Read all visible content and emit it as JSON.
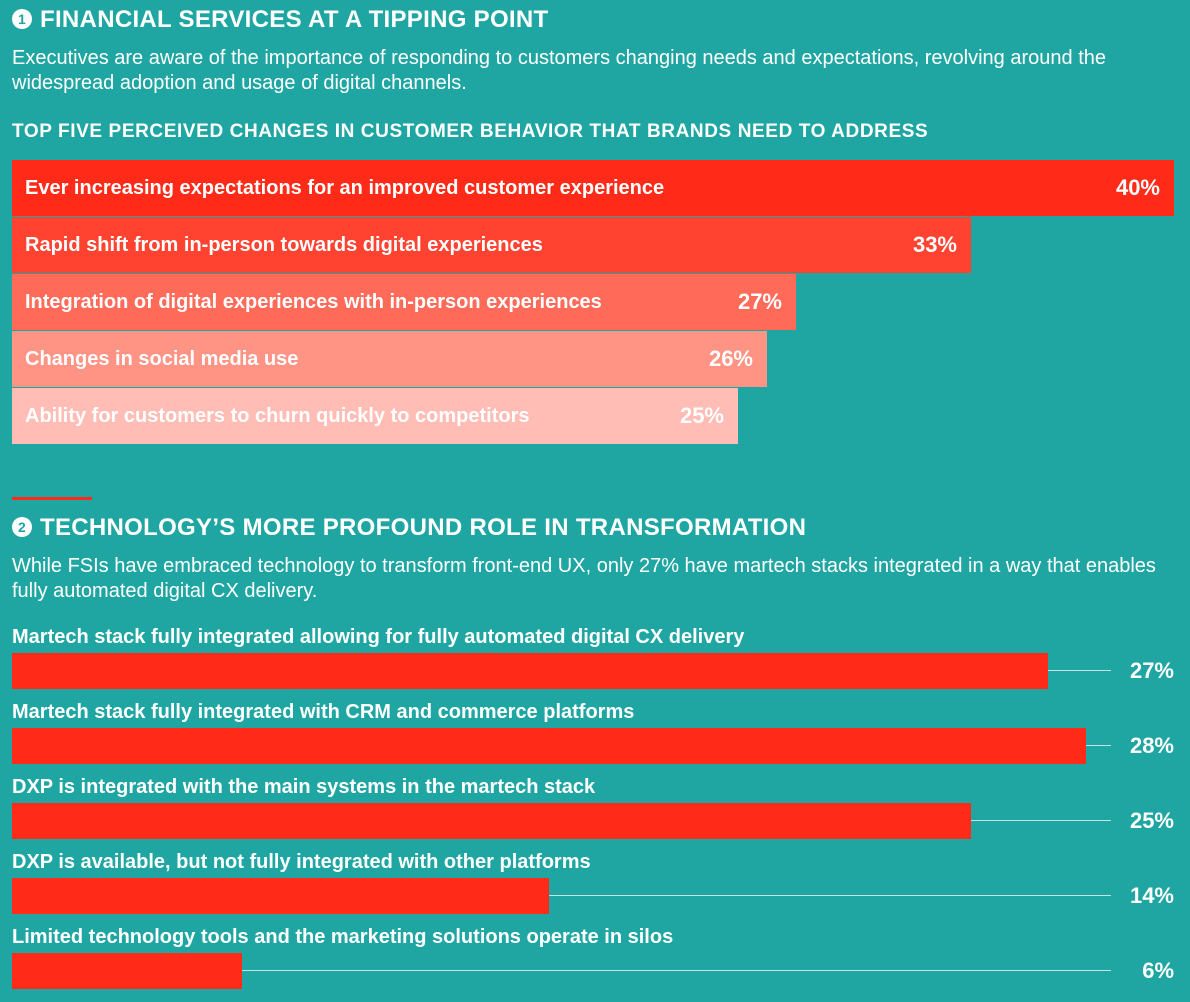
{
  "section1": {
    "number": "1",
    "title": "FINANCIAL SERVICES AT A TIPPING POINT",
    "intro": "Executives are aware of the importance of responding to customers changing needs and expectations, revolving around the widespread adoption and usage of digital channels.",
    "subhead": "TOP FIVE PERCEIVED CHANGES IN CUSTOMER BEHAVIOR THAT BRANDS NEED TO ADDRESS"
  },
  "section2": {
    "number": "2",
    "title": "TECHNOLOGY’S MORE PROFOUND ROLE IN TRANSFORMATION",
    "intro": "While FSIs have embraced technology to transform front-end UX, only 27% have martech stacks integrated in a way that enables fully automated digital CX delivery."
  },
  "chart_data": [
    {
      "type": "bar",
      "orientation": "horizontal",
      "unit": "%",
      "categories": [
        "Ever increasing expectations for an improved customer experience",
        "Rapid shift from in-person towards digital experiences",
        "Integration of digital experiences with in-person experiences",
        "Changes in social media use",
        "Ability for customers to churn quickly to competitors"
      ],
      "values": [
        40,
        33,
        27,
        26,
        25
      ],
      "value_labels": [
        "40%",
        "33%",
        "27%",
        "26%",
        "25%"
      ],
      "colors": [
        "#ff2a17",
        "#ff4330",
        "#ff6a59",
        "#ff9485",
        "#ffbdb5"
      ]
    },
    {
      "type": "bar",
      "orientation": "horizontal",
      "unit": "%",
      "categories": [
        "Martech stack fully integrated allowing for fully automated digital CX delivery",
        "Martech stack fully integrated with CRM and commerce platforms",
        "DXP is integrated with the main systems in the martech stack",
        "DXP is available, but not fully integrated with other platforms",
        "Limited technology tools and the marketing solutions operate in silos"
      ],
      "values": [
        27,
        28,
        25,
        14,
        6
      ],
      "value_labels": [
        "27%",
        "28%",
        "25%",
        "14%",
        "6%"
      ],
      "bar_color": "#ff2a17",
      "leader_line_color": "#bfe6e4"
    }
  ]
}
